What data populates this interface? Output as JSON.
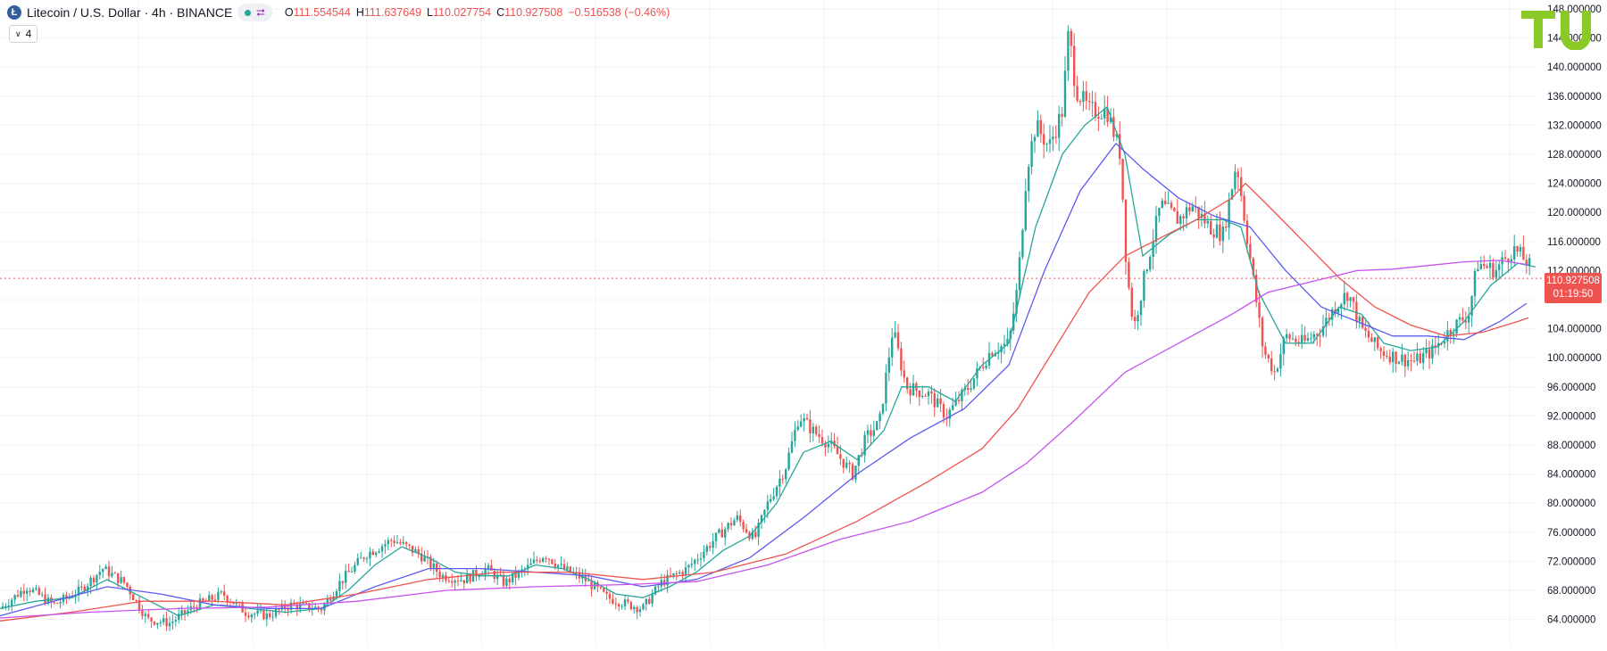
{
  "header": {
    "symbol": "Litecoin / U.S. Dollar · 4h · BINANCE",
    "coin_glyph": "Ł",
    "ohlc": {
      "o_label": "O",
      "o": "111.554544",
      "h_label": "H",
      "h": "111.637649",
      "l_label": "L",
      "l": "110.027754",
      "c_label": "C",
      "c": "110.927508",
      "change": "−0.516538 (−0.46%)"
    },
    "indicator_count": "4",
    "status_color": "#26a69a"
  },
  "price_badge": {
    "price": "110.927508",
    "countdown": "01:19:50",
    "color": "#ef5350"
  },
  "logo": {
    "text": "TU",
    "color": "#8ac926"
  },
  "chart_data": {
    "type": "line",
    "title": "Litecoin / U.S. Dollar · 4h · BINANCE",
    "ylim": [
      61.5,
      148
    ],
    "y_ticks": [
      "64.000000",
      "68.000000",
      "72.000000",
      "76.000000",
      "80.000000",
      "84.000000",
      "88.000000",
      "92.000000",
      "96.000000",
      "100.000000",
      "104.000000",
      "108.000000",
      "112.000000",
      "116.000000",
      "120.000000",
      "124.000000",
      "128.000000",
      "132.000000",
      "136.000000",
      "140.000000",
      "144.000000",
      "148.000000"
    ],
    "grid": true,
    "current_price": 110.93,
    "up_color": "#26a69a",
    "down_color": "#ef5350",
    "price_path": [
      {
        "x": 0,
        "y": 65.5
      },
      {
        "x": 30,
        "y": 68.5
      },
      {
        "x": 60,
        "y": 66
      },
      {
        "x": 90,
        "y": 68
      },
      {
        "x": 115,
        "y": 71
      },
      {
        "x": 140,
        "y": 69
      },
      {
        "x": 165,
        "y": 64
      },
      {
        "x": 190,
        "y": 63.5
      },
      {
        "x": 220,
        "y": 66
      },
      {
        "x": 250,
        "y": 67.5
      },
      {
        "x": 275,
        "y": 65
      },
      {
        "x": 300,
        "y": 64.5
      },
      {
        "x": 325,
        "y": 66
      },
      {
        "x": 360,
        "y": 65.5
      },
      {
        "x": 380,
        "y": 69
      },
      {
        "x": 410,
        "y": 73
      },
      {
        "x": 440,
        "y": 75
      },
      {
        "x": 470,
        "y": 73
      },
      {
        "x": 495,
        "y": 70
      },
      {
        "x": 520,
        "y": 69.5
      },
      {
        "x": 545,
        "y": 71
      },
      {
        "x": 565,
        "y": 69
      },
      {
        "x": 590,
        "y": 71
      },
      {
        "x": 610,
        "y": 73
      },
      {
        "x": 630,
        "y": 71
      },
      {
        "x": 655,
        "y": 69.5
      },
      {
        "x": 680,
        "y": 67
      },
      {
        "x": 705,
        "y": 66
      },
      {
        "x": 720,
        "y": 65.5
      },
      {
        "x": 740,
        "y": 69
      },
      {
        "x": 770,
        "y": 71
      },
      {
        "x": 800,
        "y": 75
      },
      {
        "x": 825,
        "y": 78
      },
      {
        "x": 845,
        "y": 75
      },
      {
        "x": 860,
        "y": 80
      },
      {
        "x": 880,
        "y": 85
      },
      {
        "x": 895,
        "y": 92
      },
      {
        "x": 910,
        "y": 90
      },
      {
        "x": 930,
        "y": 88
      },
      {
        "x": 955,
        "y": 84
      },
      {
        "x": 970,
        "y": 89
      },
      {
        "x": 985,
        "y": 91
      },
      {
        "x": 1000,
        "y": 104
      },
      {
        "x": 1015,
        "y": 96
      },
      {
        "x": 1040,
        "y": 95
      },
      {
        "x": 1060,
        "y": 92
      },
      {
        "x": 1085,
        "y": 96
      },
      {
        "x": 1110,
        "y": 101
      },
      {
        "x": 1130,
        "y": 102
      },
      {
        "x": 1140,
        "y": 110
      },
      {
        "x": 1150,
        "y": 126
      },
      {
        "x": 1160,
        "y": 132
      },
      {
        "x": 1175,
        "y": 129
      },
      {
        "x": 1190,
        "y": 134
      },
      {
        "x": 1197,
        "y": 145
      },
      {
        "x": 1205,
        "y": 137
      },
      {
        "x": 1220,
        "y": 134
      },
      {
        "x": 1240,
        "y": 134
      },
      {
        "x": 1255,
        "y": 128
      },
      {
        "x": 1262,
        "y": 112
      },
      {
        "x": 1270,
        "y": 104
      },
      {
        "x": 1285,
        "y": 113
      },
      {
        "x": 1300,
        "y": 121
      },
      {
        "x": 1320,
        "y": 119
      },
      {
        "x": 1335,
        "y": 121
      },
      {
        "x": 1355,
        "y": 118
      },
      {
        "x": 1370,
        "y": 117
      },
      {
        "x": 1385,
        "y": 127
      },
      {
        "x": 1400,
        "y": 114
      },
      {
        "x": 1415,
        "y": 101
      },
      {
        "x": 1428,
        "y": 98
      },
      {
        "x": 1440,
        "y": 103
      },
      {
        "x": 1460,
        "y": 102
      },
      {
        "x": 1480,
        "y": 104
      },
      {
        "x": 1495,
        "y": 107
      },
      {
        "x": 1510,
        "y": 109
      },
      {
        "x": 1525,
        "y": 104
      },
      {
        "x": 1545,
        "y": 101
      },
      {
        "x": 1565,
        "y": 100
      },
      {
        "x": 1585,
        "y": 99.5
      },
      {
        "x": 1605,
        "y": 101
      },
      {
        "x": 1625,
        "y": 104
      },
      {
        "x": 1645,
        "y": 106
      },
      {
        "x": 1655,
        "y": 113
      },
      {
        "x": 1675,
        "y": 112
      },
      {
        "x": 1695,
        "y": 115
      },
      {
        "x": 1712,
        "y": 113
      },
      {
        "x": 1720,
        "y": 110.9
      }
    ],
    "series": [
      {
        "color": "#26a69a",
        "points": [
          {
            "x": 0,
            "y": 65.5
          },
          {
            "x": 40,
            "y": 66.5
          },
          {
            "x": 80,
            "y": 67
          },
          {
            "x": 120,
            "y": 69.5
          },
          {
            "x": 160,
            "y": 67
          },
          {
            "x": 200,
            "y": 64.5
          },
          {
            "x": 240,
            "y": 66
          },
          {
            "x": 280,
            "y": 65.5
          },
          {
            "x": 320,
            "y": 65
          },
          {
            "x": 360,
            "y": 65.5
          },
          {
            "x": 390,
            "y": 68
          },
          {
            "x": 420,
            "y": 71.5
          },
          {
            "x": 450,
            "y": 74
          },
          {
            "x": 480,
            "y": 72.5
          },
          {
            "x": 510,
            "y": 70.5
          },
          {
            "x": 540,
            "y": 70
          },
          {
            "x": 570,
            "y": 70
          },
          {
            "x": 600,
            "y": 71.5
          },
          {
            "x": 630,
            "y": 71
          },
          {
            "x": 660,
            "y": 69.5
          },
          {
            "x": 690,
            "y": 67.5
          },
          {
            "x": 720,
            "y": 67
          },
          {
            "x": 750,
            "y": 68.5
          },
          {
            "x": 780,
            "y": 70.5
          },
          {
            "x": 810,
            "y": 73.5
          },
          {
            "x": 840,
            "y": 75.5
          },
          {
            "x": 870,
            "y": 80
          },
          {
            "x": 900,
            "y": 87
          },
          {
            "x": 930,
            "y": 88.5
          },
          {
            "x": 960,
            "y": 86
          },
          {
            "x": 990,
            "y": 90
          },
          {
            "x": 1010,
            "y": 96
          },
          {
            "x": 1040,
            "y": 96
          },
          {
            "x": 1070,
            "y": 94
          },
          {
            "x": 1100,
            "y": 99
          },
          {
            "x": 1130,
            "y": 102
          },
          {
            "x": 1160,
            "y": 118
          },
          {
            "x": 1190,
            "y": 128
          },
          {
            "x": 1215,
            "y": 132
          },
          {
            "x": 1240,
            "y": 134.5
          },
          {
            "x": 1260,
            "y": 128
          },
          {
            "x": 1280,
            "y": 114
          },
          {
            "x": 1310,
            "y": 117
          },
          {
            "x": 1340,
            "y": 119
          },
          {
            "x": 1370,
            "y": 119
          },
          {
            "x": 1390,
            "y": 118
          },
          {
            "x": 1410,
            "y": 109
          },
          {
            "x": 1440,
            "y": 102
          },
          {
            "x": 1470,
            "y": 102
          },
          {
            "x": 1500,
            "y": 107
          },
          {
            "x": 1525,
            "y": 106
          },
          {
            "x": 1550,
            "y": 102
          },
          {
            "x": 1580,
            "y": 101
          },
          {
            "x": 1610,
            "y": 101.5
          },
          {
            "x": 1640,
            "y": 105
          },
          {
            "x": 1670,
            "y": 110
          },
          {
            "x": 1700,
            "y": 113
          },
          {
            "x": 1720,
            "y": 112.5
          }
        ]
      },
      {
        "color": "#5b5bf0",
        "points": [
          {
            "x": 0,
            "y": 64.5
          },
          {
            "x": 60,
            "y": 66.5
          },
          {
            "x": 120,
            "y": 68.5
          },
          {
            "x": 180,
            "y": 67.5
          },
          {
            "x": 240,
            "y": 66
          },
          {
            "x": 300,
            "y": 65.5
          },
          {
            "x": 360,
            "y": 65.5
          },
          {
            "x": 420,
            "y": 68.5
          },
          {
            "x": 480,
            "y": 71
          },
          {
            "x": 540,
            "y": 71
          },
          {
            "x": 600,
            "y": 70.5
          },
          {
            "x": 660,
            "y": 70
          },
          {
            "x": 720,
            "y": 68.5
          },
          {
            "x": 780,
            "y": 69.5
          },
          {
            "x": 840,
            "y": 72.5
          },
          {
            "x": 900,
            "y": 78
          },
          {
            "x": 960,
            "y": 84
          },
          {
            "x": 1020,
            "y": 89
          },
          {
            "x": 1080,
            "y": 93
          },
          {
            "x": 1130,
            "y": 99
          },
          {
            "x": 1170,
            "y": 112
          },
          {
            "x": 1210,
            "y": 123
          },
          {
            "x": 1250,
            "y": 129.5
          },
          {
            "x": 1280,
            "y": 126
          },
          {
            "x": 1320,
            "y": 122
          },
          {
            "x": 1360,
            "y": 119.5
          },
          {
            "x": 1400,
            "y": 118
          },
          {
            "x": 1440,
            "y": 112
          },
          {
            "x": 1480,
            "y": 107
          },
          {
            "x": 1520,
            "y": 105
          },
          {
            "x": 1560,
            "y": 103
          },
          {
            "x": 1600,
            "y": 103
          },
          {
            "x": 1640,
            "y": 102.5
          },
          {
            "x": 1680,
            "y": 105
          },
          {
            "x": 1710,
            "y": 107.5
          }
        ]
      },
      {
        "color": "#ef5350",
        "points": [
          {
            "x": 0,
            "y": 63.8
          },
          {
            "x": 80,
            "y": 65
          },
          {
            "x": 160,
            "y": 66.5
          },
          {
            "x": 240,
            "y": 66.5
          },
          {
            "x": 320,
            "y": 66
          },
          {
            "x": 400,
            "y": 67.5
          },
          {
            "x": 480,
            "y": 69.5
          },
          {
            "x": 560,
            "y": 70.5
          },
          {
            "x": 640,
            "y": 70.5
          },
          {
            "x": 720,
            "y": 69.5
          },
          {
            "x": 800,
            "y": 70.5
          },
          {
            "x": 880,
            "y": 73
          },
          {
            "x": 960,
            "y": 77.5
          },
          {
            "x": 1040,
            "y": 83
          },
          {
            "x": 1100,
            "y": 87.5
          },
          {
            "x": 1140,
            "y": 93
          },
          {
            "x": 1180,
            "y": 101
          },
          {
            "x": 1220,
            "y": 109
          },
          {
            "x": 1260,
            "y": 114
          },
          {
            "x": 1300,
            "y": 116.5
          },
          {
            "x": 1340,
            "y": 119
          },
          {
            "x": 1380,
            "y": 122
          },
          {
            "x": 1395,
            "y": 124
          },
          {
            "x": 1420,
            "y": 121
          },
          {
            "x": 1460,
            "y": 116
          },
          {
            "x": 1500,
            "y": 111
          },
          {
            "x": 1540,
            "y": 107
          },
          {
            "x": 1580,
            "y": 104.5
          },
          {
            "x": 1620,
            "y": 103
          },
          {
            "x": 1660,
            "y": 103.5
          },
          {
            "x": 1700,
            "y": 105
          },
          {
            "x": 1712,
            "y": 105.5
          }
        ]
      },
      {
        "color": "#c653f0",
        "points": [
          {
            "x": 0,
            "y": 64.2
          },
          {
            "x": 100,
            "y": 65
          },
          {
            "x": 200,
            "y": 65.5
          },
          {
            "x": 300,
            "y": 65.7
          },
          {
            "x": 400,
            "y": 66.5
          },
          {
            "x": 500,
            "y": 68
          },
          {
            "x": 600,
            "y": 68.5
          },
          {
            "x": 700,
            "y": 68.8
          },
          {
            "x": 780,
            "y": 69.2
          },
          {
            "x": 860,
            "y": 71.5
          },
          {
            "x": 940,
            "y": 75
          },
          {
            "x": 1020,
            "y": 77.5
          },
          {
            "x": 1100,
            "y": 81.5
          },
          {
            "x": 1150,
            "y": 85.5
          },
          {
            "x": 1200,
            "y": 91
          },
          {
            "x": 1260,
            "y": 98
          },
          {
            "x": 1320,
            "y": 102
          },
          {
            "x": 1380,
            "y": 106
          },
          {
            "x": 1420,
            "y": 109
          },
          {
            "x": 1470,
            "y": 110.5
          },
          {
            "x": 1520,
            "y": 112
          },
          {
            "x": 1560,
            "y": 112.2
          },
          {
            "x": 1600,
            "y": 112.7
          },
          {
            "x": 1640,
            "y": 113.2
          },
          {
            "x": 1680,
            "y": 113.4
          },
          {
            "x": 1712,
            "y": 112.8
          }
        ]
      }
    ]
  }
}
